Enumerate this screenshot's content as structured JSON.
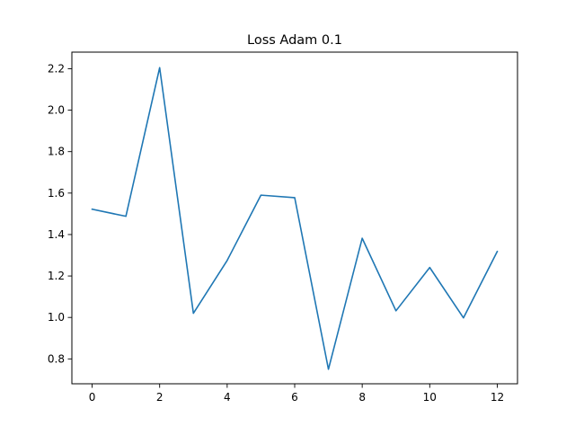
{
  "chart_data": {
    "type": "line",
    "title": "Loss Adam 0.1",
    "xlabel": "",
    "ylabel": "",
    "x": [
      0,
      1,
      2,
      3,
      4,
      5,
      6,
      7,
      8,
      9,
      10,
      11,
      12
    ],
    "series": [
      {
        "values": [
          1.522,
          1.488,
          2.205,
          1.02,
          1.275,
          1.59,
          1.578,
          0.75,
          1.382,
          1.032,
          1.241,
          0.998,
          1.318
        ],
        "color": "#1f77b4"
      }
    ],
    "xlim": [
      -0.6,
      12.6
    ],
    "ylim": [
      0.68,
      2.28
    ],
    "xticks": [
      0,
      2,
      4,
      6,
      8,
      10,
      12
    ],
    "yticks": [
      0.8,
      1.0,
      1.2,
      1.4,
      1.6,
      1.8,
      2.0,
      2.2
    ],
    "xtick_labels": [
      "0",
      "2",
      "4",
      "6",
      "8",
      "10",
      "12"
    ],
    "ytick_labels": [
      "0.8",
      "1.0",
      "1.2",
      "1.4",
      "1.6",
      "1.8",
      "2.0",
      "2.2"
    ],
    "grid": false,
    "legend": "none"
  }
}
